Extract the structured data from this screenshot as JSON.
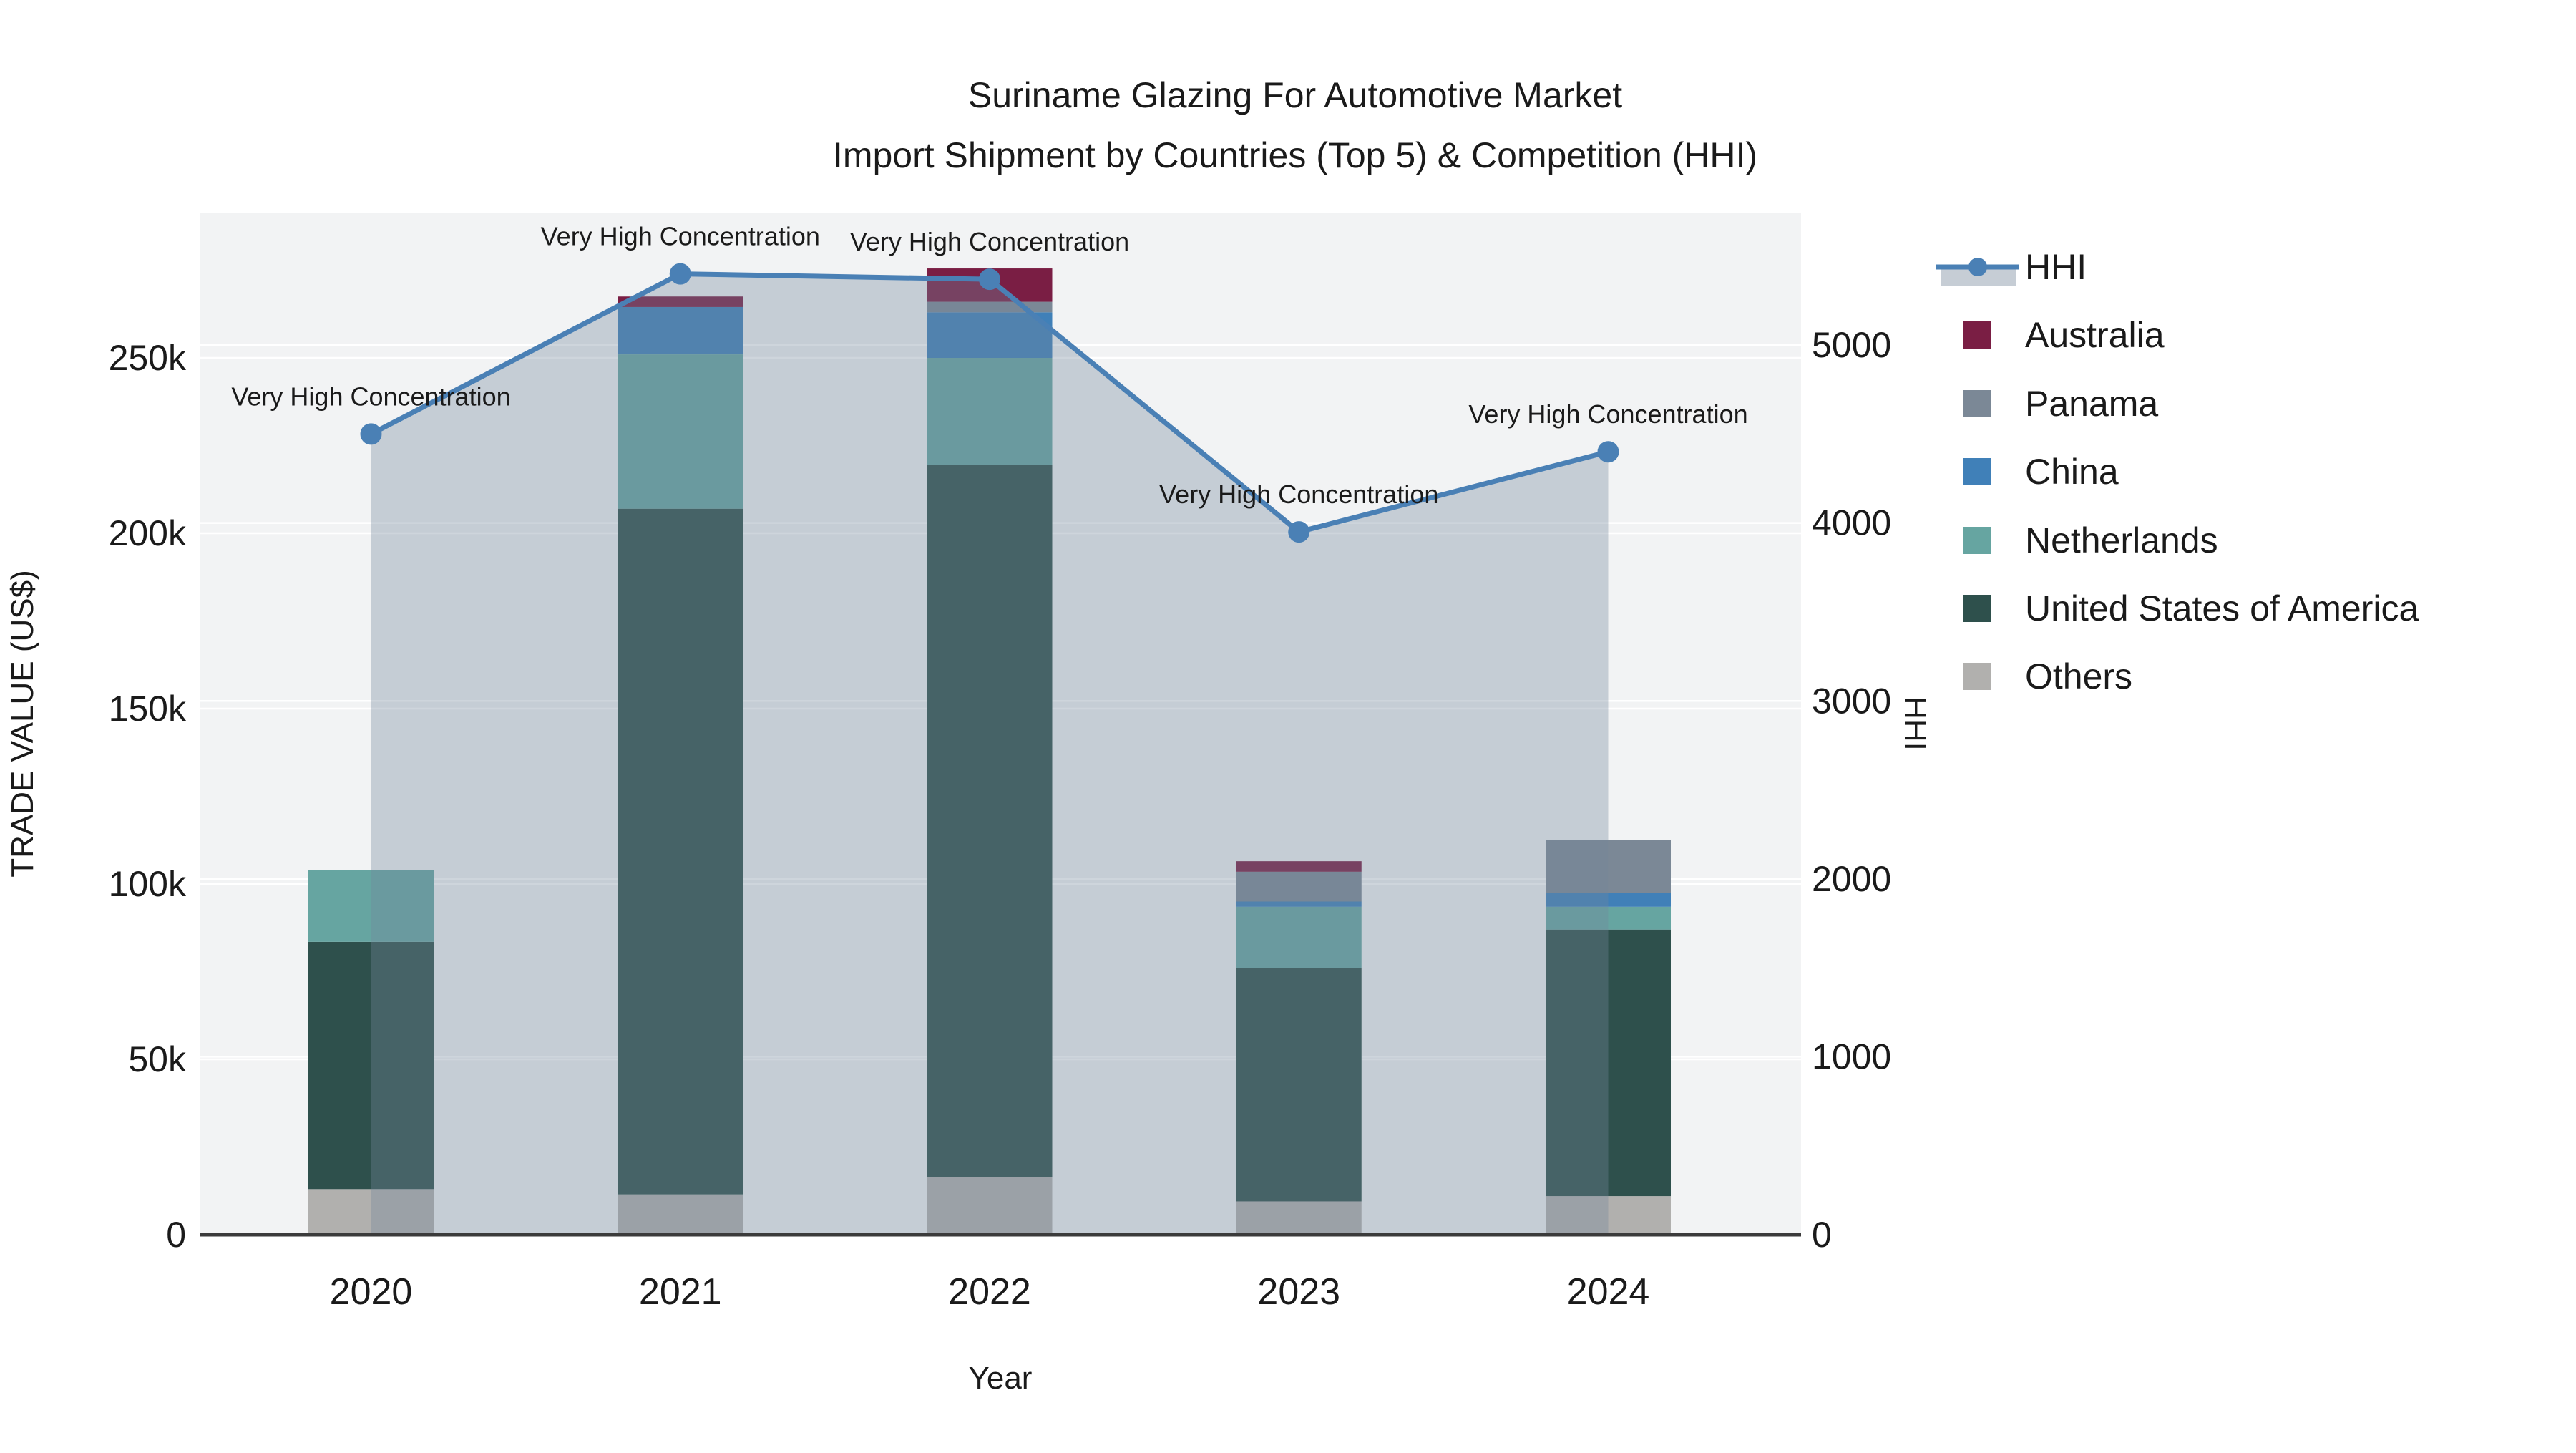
{
  "chart_data": {
    "type": "bar",
    "subtype": "stacked-bars-with-line-and-area",
    "title_line1": "Suriname Glazing For Automotive Market",
    "title_line2": "Import Shipment by Countries (Top 5) & Competition (HHI)",
    "xlabel": "Year",
    "ylabel_left": "TRADE VALUE (US$)",
    "ylabel_right": "HHI",
    "categories": [
      "2020",
      "2021",
      "2022",
      "2023",
      "2024"
    ],
    "series": [
      {
        "name": "Others",
        "color": "#b1b0ae",
        "values_kusd": [
          13,
          11.5,
          16.5,
          9.5,
          11
        ]
      },
      {
        "name": "United States of America",
        "color": "#2e504c",
        "values_kusd": [
          70.5,
          195.5,
          203,
          66.5,
          76
        ]
      },
      {
        "name": "Netherlands",
        "color": "#66a5a1",
        "values_kusd": [
          20.5,
          44,
          30.5,
          17.5,
          6.5
        ]
      },
      {
        "name": "China",
        "color": "#4080b8",
        "values_kusd": [
          0,
          13.5,
          13,
          1.5,
          4
        ]
      },
      {
        "name": "Panama",
        "color": "#7b8896",
        "values_kusd": [
          0,
          0,
          3,
          8.5,
          15
        ]
      },
      {
        "name": "Australia",
        "color": "#7a1e44",
        "values_kusd": [
          0,
          3,
          9.5,
          3,
          0
        ]
      }
    ],
    "line_series": {
      "name": "HHI",
      "axis": "right",
      "values": [
        4500,
        5400,
        5370,
        3950,
        4400
      ]
    },
    "annotations": [
      {
        "year": "2020",
        "text": "Very High Concentration"
      },
      {
        "year": "2021",
        "text": "Very High Concentration"
      },
      {
        "year": "2022",
        "text": "Very High Concentration"
      },
      {
        "year": "2023",
        "text": "Very High Concentration"
      },
      {
        "year": "2024",
        "text": "Very High Concentration"
      }
    ],
    "left_axis_ticks": [
      {
        "label": "0",
        "value": 0
      },
      {
        "label": "50k",
        "value": 50
      },
      {
        "label": "100k",
        "value": 100
      },
      {
        "label": "150k",
        "value": 150
      },
      {
        "label": "200k",
        "value": 200
      },
      {
        "label": "250k",
        "value": 250
      }
    ],
    "right_axis_ticks": [
      {
        "label": "0",
        "value": 0
      },
      {
        "label": "1000",
        "value": 1000
      },
      {
        "label": "2000",
        "value": 2000
      },
      {
        "label": "3000",
        "value": 3000
      },
      {
        "label": "4000",
        "value": 4000
      },
      {
        "label": "5000",
        "value": 5000
      }
    ],
    "ylim_left_kusd": [
      0,
      285
    ],
    "ylim_right": [
      0,
      5735
    ],
    "grid": true,
    "legend_position": "right",
    "legend_items": [
      "HHI",
      "Australia",
      "Panama",
      "China",
      "Netherlands",
      "United States of America",
      "Others"
    ]
  },
  "colors": {
    "hhi_line": "#4a80b5",
    "hhi_fill": "rgba(116,135,156,0.35)",
    "hhi_legend_band": "#c6cdd5",
    "plot_bg": "#f2f3f4",
    "grid": "#ffffff",
    "axis_line": "#3b3b3b",
    "text": "#1a1a1a"
  }
}
